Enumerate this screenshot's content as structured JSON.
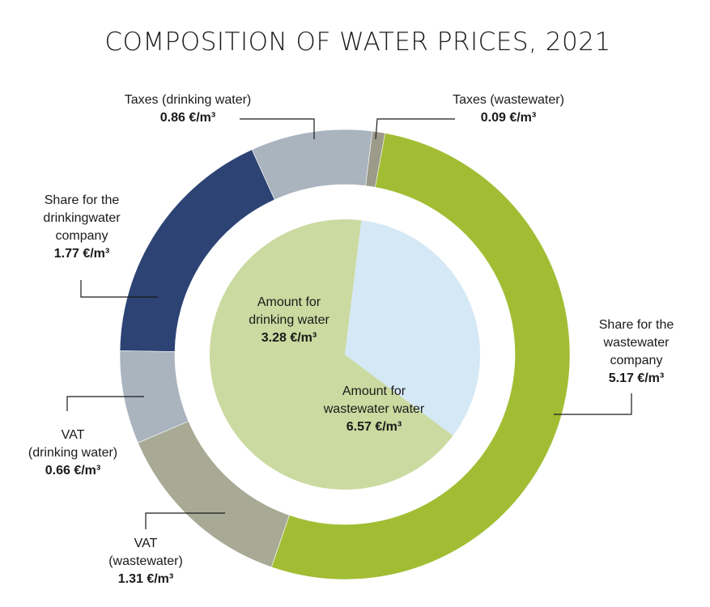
{
  "chart_data": {
    "type": "pie",
    "title": "COMPOSITION OF WATER PRICES, 2021",
    "unit": "€/m³",
    "inner": [
      {
        "label": "Amount for drinking water",
        "lines": [
          "Amount for",
          "drinking water"
        ],
        "value": 3.28,
        "display": "3.28 €/m³",
        "color": "#d5e8f5"
      },
      {
        "label": "Amount for wastewater water",
        "lines": [
          "Amount for",
          "wastewater water"
        ],
        "value": 6.57,
        "display": "6.57 €/m³",
        "color": "#cbdaa0"
      }
    ],
    "outer": [
      {
        "label": "Taxes (wastewater)",
        "lines": [
          "Taxes (wastewater)"
        ],
        "value": 0.09,
        "display": "0.09 €/m³",
        "color": "#9c9a88"
      },
      {
        "label": "Share for the wastewater company",
        "lines": [
          "Share for the",
          "wastewater",
          "company"
        ],
        "value": 5.17,
        "display": "5.17 €/m³",
        "color": "#a2bd34"
      },
      {
        "label": "VAT (wastewater)",
        "lines": [
          "VAT",
          "(wastewater)"
        ],
        "value": 1.31,
        "display": "1.31 €/m³",
        "color": "#a8aa95"
      },
      {
        "label": "VAT (drinking water)",
        "lines": [
          "VAT",
          "(drinking water)"
        ],
        "value": 0.66,
        "display": "0.66 €/m³",
        "color": "#aab4bf"
      },
      {
        "label": "Share for the drinkingwater company",
        "lines": [
          "Share for the",
          "drinkingwater",
          "company"
        ],
        "value": 1.77,
        "display": "1.77 €/m³",
        "color": "#2c4374"
      },
      {
        "label": "Taxes (drinking water)",
        "lines": [
          "Taxes (drinking water)"
        ],
        "value": 0.86,
        "display": "0.86 €/m³",
        "color": "#aab4bf"
      }
    ]
  }
}
